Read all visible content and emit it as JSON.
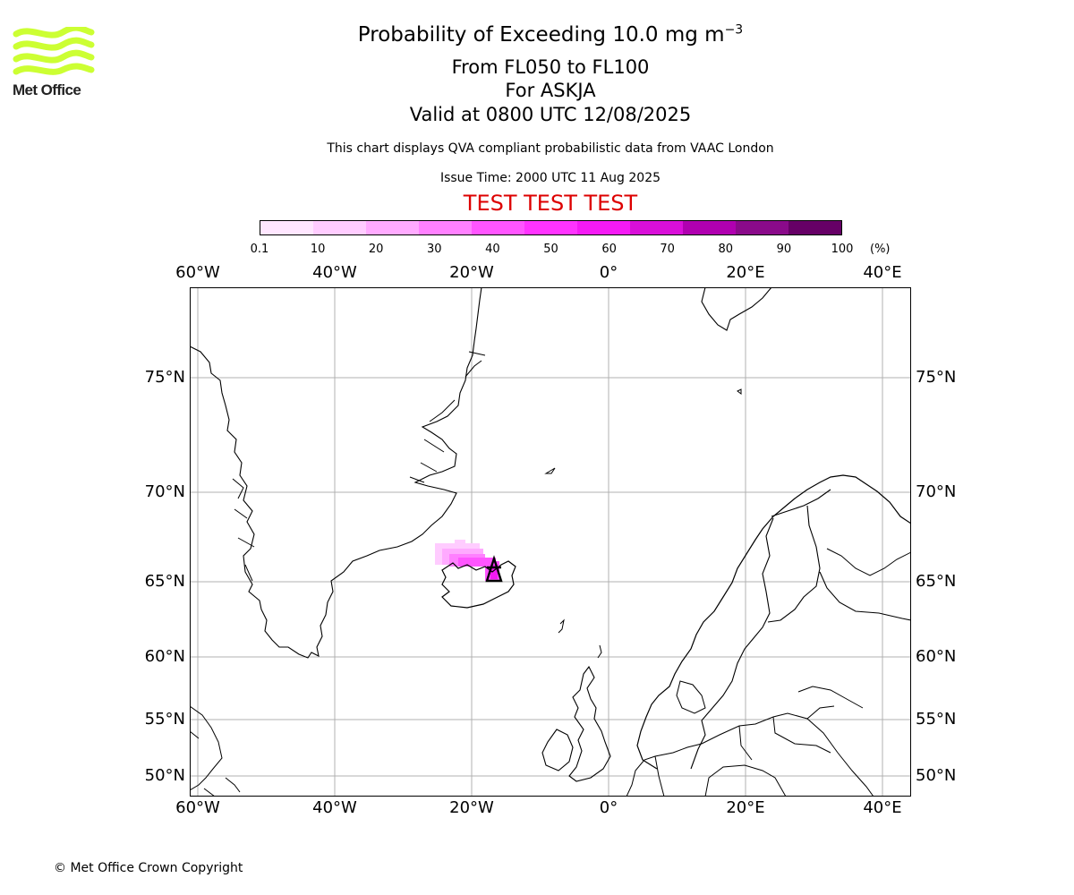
{
  "title": {
    "main_prefix": "Probability of Exceeding 10.0 mg m",
    "main_superscript": "−3",
    "level_range": "From FL050 to FL100",
    "volcano": "For ASKJA",
    "valid_time": "Valid at 0800 UTC 12/08/2025",
    "description": "This chart displays QVA compliant probabilistic data from VAAC London",
    "issue_time": "Issue Time: 2000 UTC 11 Aug 2025",
    "test_banner": "TEST TEST TEST"
  },
  "logo": {
    "text": "Met Office",
    "color": "#ccff33"
  },
  "colorbar": {
    "labels": [
      "0.1",
      "10",
      "20",
      "30",
      "40",
      "50",
      "60",
      "70",
      "80",
      "90",
      "100"
    ],
    "units": "(%)",
    "colors": [
      "#ffe6ff",
      "#ffccff",
      "#ffaaff",
      "#ff80ff",
      "#ff55ff",
      "#ff33ff",
      "#f51af5",
      "#d90fd9",
      "#b000b0",
      "#8a0a8a",
      "#660066"
    ]
  },
  "map": {
    "lon_labels": [
      "60°W",
      "40°W",
      "20°W",
      "0°",
      "20°E",
      "40°E"
    ],
    "lat_labels": [
      "75°N",
      "70°N",
      "65°N",
      "60°N",
      "55°N",
      "50°N"
    ],
    "gridlines": true,
    "region": "North Atlantic, Greenland, Iceland, Scandinavia",
    "volcano_marker": "volcano-triangle-icon"
  },
  "copyright": "© Met Office Crown Copyright"
}
